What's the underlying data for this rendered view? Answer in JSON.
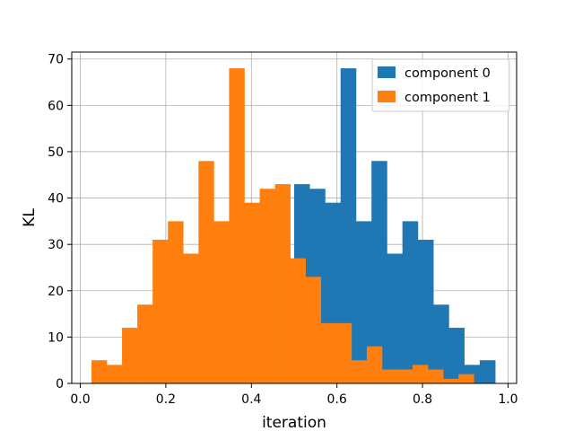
{
  "chart_data": {
    "type": "bar",
    "xlabel": "iteration",
    "ylabel": "KL",
    "xlim": [
      -0.02,
      1.02
    ],
    "ylim": [
      0,
      71.5
    ],
    "xticks": [
      0.0,
      0.2,
      0.4,
      0.6,
      0.8,
      1.0
    ],
    "xtick_labels": [
      "0.0",
      "0.2",
      "0.4",
      "0.6",
      "0.8",
      "1.0"
    ],
    "yticks": [
      0,
      10,
      20,
      30,
      40,
      50,
      60,
      70
    ],
    "ytick_labels": [
      "0",
      "10",
      "20",
      "30",
      "40",
      "50",
      "60",
      "70"
    ],
    "grid": true,
    "legend_position": "top-right",
    "bin_edges": [
      0.026,
      0.064,
      0.102,
      0.14,
      0.178,
      0.216,
      0.254,
      0.292,
      0.33,
      0.368,
      0.406,
      0.444,
      0.482,
      0.52,
      0.558,
      0.596,
      0.634,
      0.672,
      0.71,
      0.748,
      0.786,
      0.824,
      0.862,
      0.9,
      0.938,
      0.976
    ],
    "series": [
      {
        "name": "component 0",
        "color": "#1f77b4",
        "x_range": [
          0.5,
          0.97
        ],
        "values": [
          43,
          42,
          39,
          68,
          35,
          48,
          28,
          35,
          31,
          17,
          12,
          4,
          5
        ]
      },
      {
        "name": "component 1",
        "color": "#ff7f0e",
        "x_range": [
          0.026,
          0.92
        ],
        "values": [
          5,
          4,
          12,
          17,
          31,
          35,
          28,
          48,
          35,
          68,
          39,
          42,
          43,
          27,
          23,
          13,
          13,
          5,
          8,
          3,
          3,
          4,
          3,
          1,
          2
        ]
      }
    ]
  }
}
